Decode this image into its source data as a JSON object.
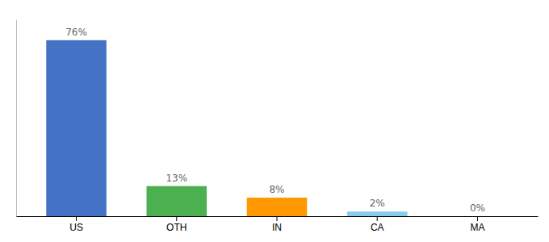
{
  "chart_data": {
    "type": "bar",
    "categories": [
      "US",
      "OTH",
      "IN",
      "CA",
      "MA"
    ],
    "values": [
      76,
      13,
      8,
      2,
      0
    ],
    "value_labels": [
      "76%",
      "13%",
      "8%",
      "2%",
      "0%"
    ],
    "colors": [
      "#4472c4",
      "#4caf50",
      "#ff9800",
      "#87ceeb",
      "#87ceeb"
    ],
    "ylim": [
      0,
      85
    ],
    "data_labels": true,
    "tick_labels": "x",
    "grid": false
  }
}
